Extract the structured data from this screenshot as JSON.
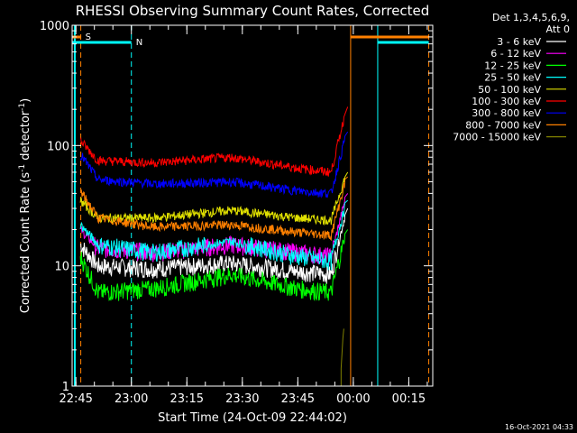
{
  "chart_data": {
    "type": "line",
    "title": "RHESSI Observing Summary Count Rates, Corrected",
    "xlabel": "Start Time (24-Oct-09 22:44:02)",
    "ylabel_main": "Corrected Count Rate (s",
    "ylabel_sup1": "-1",
    "ylabel_mid": " detector",
    "ylabel_sup2": "-1",
    "ylabel_end": ")",
    "yscale": "log",
    "ylim": [
      1,
      1000
    ],
    "xlim_minutes": [
      22.733,
      24.358
    ],
    "x_ticks": [
      {
        "label": "22:45",
        "t": 22.75
      },
      {
        "label": "23:00",
        "t": 23.0
      },
      {
        "label": "23:15",
        "t": 23.25
      },
      {
        "label": "23:30",
        "t": 23.5
      },
      {
        "label": "23:45",
        "t": 23.75
      },
      {
        "label": "00:00",
        "t": 24.0
      },
      {
        "label": "00:15",
        "t": 24.25
      }
    ],
    "y_ticks": [
      {
        "label": "1",
        "v": 1
      },
      {
        "label": "10",
        "v": 10
      },
      {
        "label": "100",
        "v": 100
      },
      {
        "label": "1000",
        "v": 1000
      }
    ],
    "legend_header": [
      "Det 1,3,4,5,6,9,",
      "Att 0"
    ],
    "legend_position": "top-right",
    "series": [
      {
        "name": "3 - 6 keV",
        "color": "#ffffff",
        "levels": [
          15,
          10,
          9.5,
          10.5,
          9,
          8.5,
          30
        ]
      },
      {
        "name": "6 - 12 keV",
        "color": "#ff00ff",
        "levels": [
          20,
          14,
          13,
          15,
          13,
          12,
          40
        ]
      },
      {
        "name": "12 - 25 keV",
        "color": "#00ff00",
        "levels": [
          12,
          6,
          6.5,
          8.5,
          6.5,
          6,
          20
        ]
      },
      {
        "name": "25 - 50 keV",
        "color": "#00ffff",
        "levels": [
          22,
          15,
          13,
          16,
          12,
          11,
          35
        ]
      },
      {
        "name": "50 - 100 keV",
        "color": "#e0e000",
        "levels": [
          35,
          25,
          25,
          29,
          25,
          24,
          60
        ]
      },
      {
        "name": "100 - 300 keV",
        "color": "#ff0000",
        "levels": [
          110,
          75,
          72,
          80,
          65,
          60,
          210
        ]
      },
      {
        "name": "300 - 800 keV",
        "color": "#0000ff",
        "levels": [
          85,
          52,
          48,
          50,
          42,
          40,
          130
        ]
      },
      {
        "name": "800 - 7000 keV",
        "color": "#ff8000",
        "levels": [
          42,
          25,
          21,
          22,
          19,
          18,
          55
        ]
      },
      {
        "name": "7000 - 15000 keV",
        "color": "#808000",
        "levels": [
          1,
          1,
          1,
          1,
          1,
          1,
          3
        ]
      }
    ],
    "annotations": [
      {
        "label": "S",
        "color": "#ff8000"
      },
      {
        "label": "N",
        "color": "#00ffff"
      }
    ],
    "footer_date": "16-Oct-2021 04:33"
  }
}
